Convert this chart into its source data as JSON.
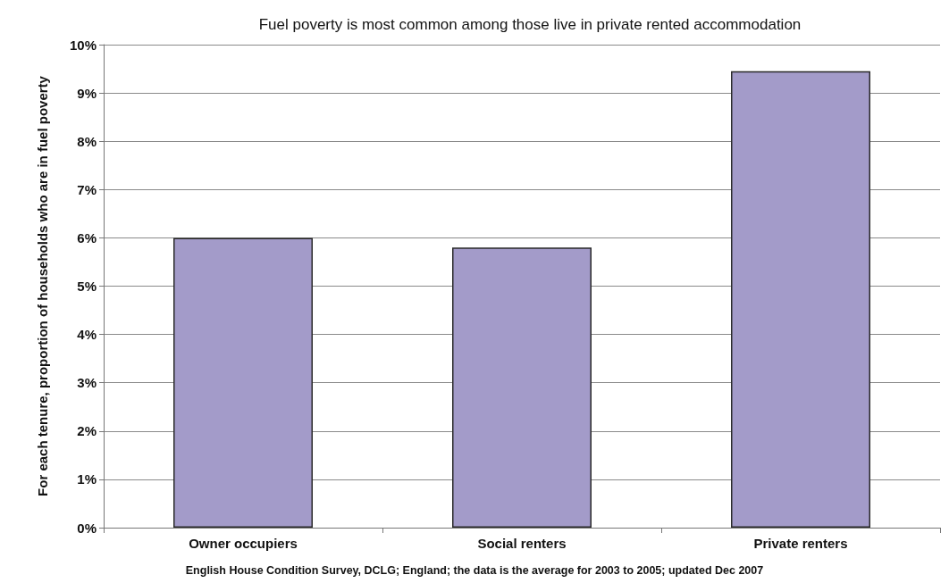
{
  "chart_data": {
    "type": "bar",
    "title": "Fuel poverty is most common among those live in private rented accommodation",
    "ylabel": "For each tenure, proportion of households who are in fuel poverty",
    "categories": [
      "Owner occupiers",
      "Social renters",
      "Private renters"
    ],
    "values": [
      6.0,
      5.8,
      9.45
    ],
    "color": "#a39bc9",
    "ylim": [
      0,
      10
    ],
    "yticks": [
      {
        "value": 0,
        "label": "0%"
      },
      {
        "value": 1,
        "label": "1%"
      },
      {
        "value": 2,
        "label": "2%"
      },
      {
        "value": 3,
        "label": "3%"
      },
      {
        "value": 4,
        "label": "4%"
      },
      {
        "value": 5,
        "label": "5%"
      },
      {
        "value": 6,
        "label": "6%"
      },
      {
        "value": 7,
        "label": "7%"
      },
      {
        "value": 8,
        "label": "8%"
      },
      {
        "value": 9,
        "label": "9%"
      },
      {
        "value": 10,
        "label": "10%"
      }
    ],
    "grid": "y",
    "annotations": [
      "English House Condition Survey, DCLG; England; the data is the average for 2003 to 2005; updated Dec 2007"
    ]
  }
}
